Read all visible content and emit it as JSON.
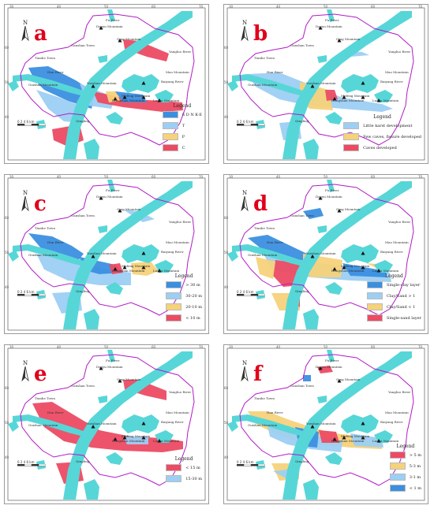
{
  "map_labels": {
    "north": "N",
    "yangtze_river": "Yangtze River",
    "han_river": "Han River",
    "fu_river": "Fu River",
    "yangluo_river": "Yangluo River",
    "baiyang_river": "Baiyang River",
    "daoyu_mountain": "Daoyu Mountain",
    "qing_mountain": "Qing Mountain",
    "ganshan_town": "Ganshan Town",
    "tianhe_town": "Tianhe Town",
    "guishan_mountain": "Guishan Mountain",
    "yueshan_mountain": "Yueshan Mountain",
    "mafeng_mountain": "Mafeng Mountain",
    "hongshan_mountain": "Hongshan Mountain",
    "luoyu_mountain": "Luoyu Mountain",
    "mao_mountain": "Mao Mountain",
    "qingling": "Qingling",
    "scale": "0  2  4  6 km"
  },
  "ticks_x": [
    "30",
    "40",
    "50",
    "60",
    "70"
  ],
  "ticks_y": [
    "60",
    "50",
    "40"
  ],
  "panels": [
    {
      "label": "a",
      "legend_title": "Legend",
      "legend": [
        {
          "color": "#3b8fe0",
          "text": "S  D  N  K-E"
        },
        {
          "color": "#9ccff3",
          "text": "T"
        },
        {
          "color": "#f6d27a",
          "text": "P"
        },
        {
          "color": "#ec4b63",
          "text": "C"
        }
      ]
    },
    {
      "label": "b",
      "legend_title": "Legend",
      "legend": [
        {
          "color": "#9ccff3",
          "text": "Little karst development"
        },
        {
          "color": "#f6d27a",
          "text": "Few caves, fissure developed"
        },
        {
          "color": "#ec4b63",
          "text": "Caves developed"
        }
      ]
    },
    {
      "label": "c",
      "legend_title": "Legend",
      "legend": [
        {
          "color": "#3b8fe0",
          "text": "> 30  m"
        },
        {
          "color": "#9ccff3",
          "text": "30-20  m"
        },
        {
          "color": "#f6d27a",
          "text": "20-10  m"
        },
        {
          "color": "#ec4b63",
          "text": "< 10  m"
        }
      ]
    },
    {
      "label": "d",
      "legend_title": "Legend",
      "legend": [
        {
          "color": "#3b8fe0",
          "text": "Single-clay layer"
        },
        {
          "color": "#9ccff3",
          "text": "Clay/Sand > 1"
        },
        {
          "color": "#f6d27a",
          "text": "Clay/Sand < 1"
        },
        {
          "color": "#ec4b63",
          "text": "Single-sand layer"
        }
      ]
    },
    {
      "label": "e",
      "legend_title": "Legend",
      "legend": [
        {
          "color": "#ec4b63",
          "text": "< 15  m"
        },
        {
          "color": "#9ccff3",
          "text": "15-30  m"
        }
      ]
    },
    {
      "label": "f",
      "legend_title": "Legend",
      "legend": [
        {
          "color": "#ec4b63",
          "text": "> 5  m"
        },
        {
          "color": "#f6d27a",
          "text": "5-3  m"
        },
        {
          "color": "#9ccff3",
          "text": "3-1  m"
        },
        {
          "color": "#3b8fe0",
          "text": "< 1  m"
        }
      ]
    }
  ]
}
